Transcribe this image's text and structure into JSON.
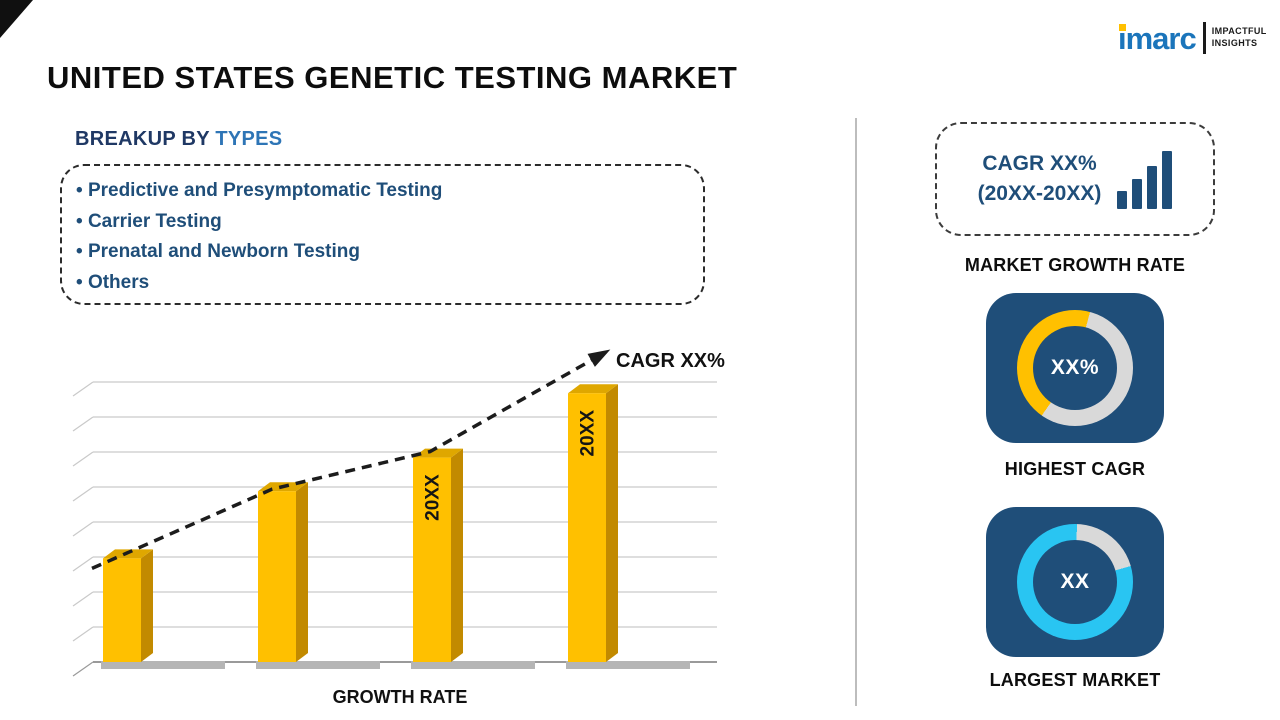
{
  "page": {
    "title": "UNITED STATES GENETIC TESTING MARKET"
  },
  "logo": {
    "brand": "imarc",
    "tagline_line1": "IMPACTFUL",
    "tagline_line2": "INSIGHTS"
  },
  "breakup": {
    "heading_prefix": "BREAKUP BY",
    "heading_highlight": "TYPES",
    "items": [
      "Predictive and Presymptomatic Testing",
      "Carrier Testing",
      "Prenatal and Newborn Testing",
      "Others"
    ]
  },
  "chart_data": {
    "type": "bar",
    "title": "",
    "xlabel": "GROWTH RATE",
    "ylabel": "",
    "categories": [
      "",
      "",
      "20XX",
      "20XX"
    ],
    "values": [
      37,
      61,
      73,
      96
    ],
    "ylim": [
      0,
      100
    ],
    "grid": true,
    "annotation": "CAGR XX%",
    "trend": "dashed-arrow",
    "bar_color": "#FFC000",
    "bar_side_color": "#C28A00",
    "bar_top_color": "#DFA700"
  },
  "right_panel": {
    "cagr_box": {
      "line1": "CAGR XX%",
      "line2": "(20XX-20XX)"
    },
    "market_growth_label": "MARKET GROWTH RATE",
    "highest_cagr": {
      "value": "XX%",
      "label": "HIGHEST CAGR",
      "accent": "#FFC000"
    },
    "largest_market": {
      "value": "XX",
      "label": "LARGEST MARKET",
      "accent": "#29C5F2"
    }
  },
  "colors": {
    "navy": "#1F4E79",
    "heading_navy": "#1F3864",
    "heading_blue": "#2E75B6",
    "gold": "#FFC000",
    "cyan": "#29C5F2",
    "ring_gray": "#D9D9D9",
    "logo_blue": "#1B75BB"
  }
}
